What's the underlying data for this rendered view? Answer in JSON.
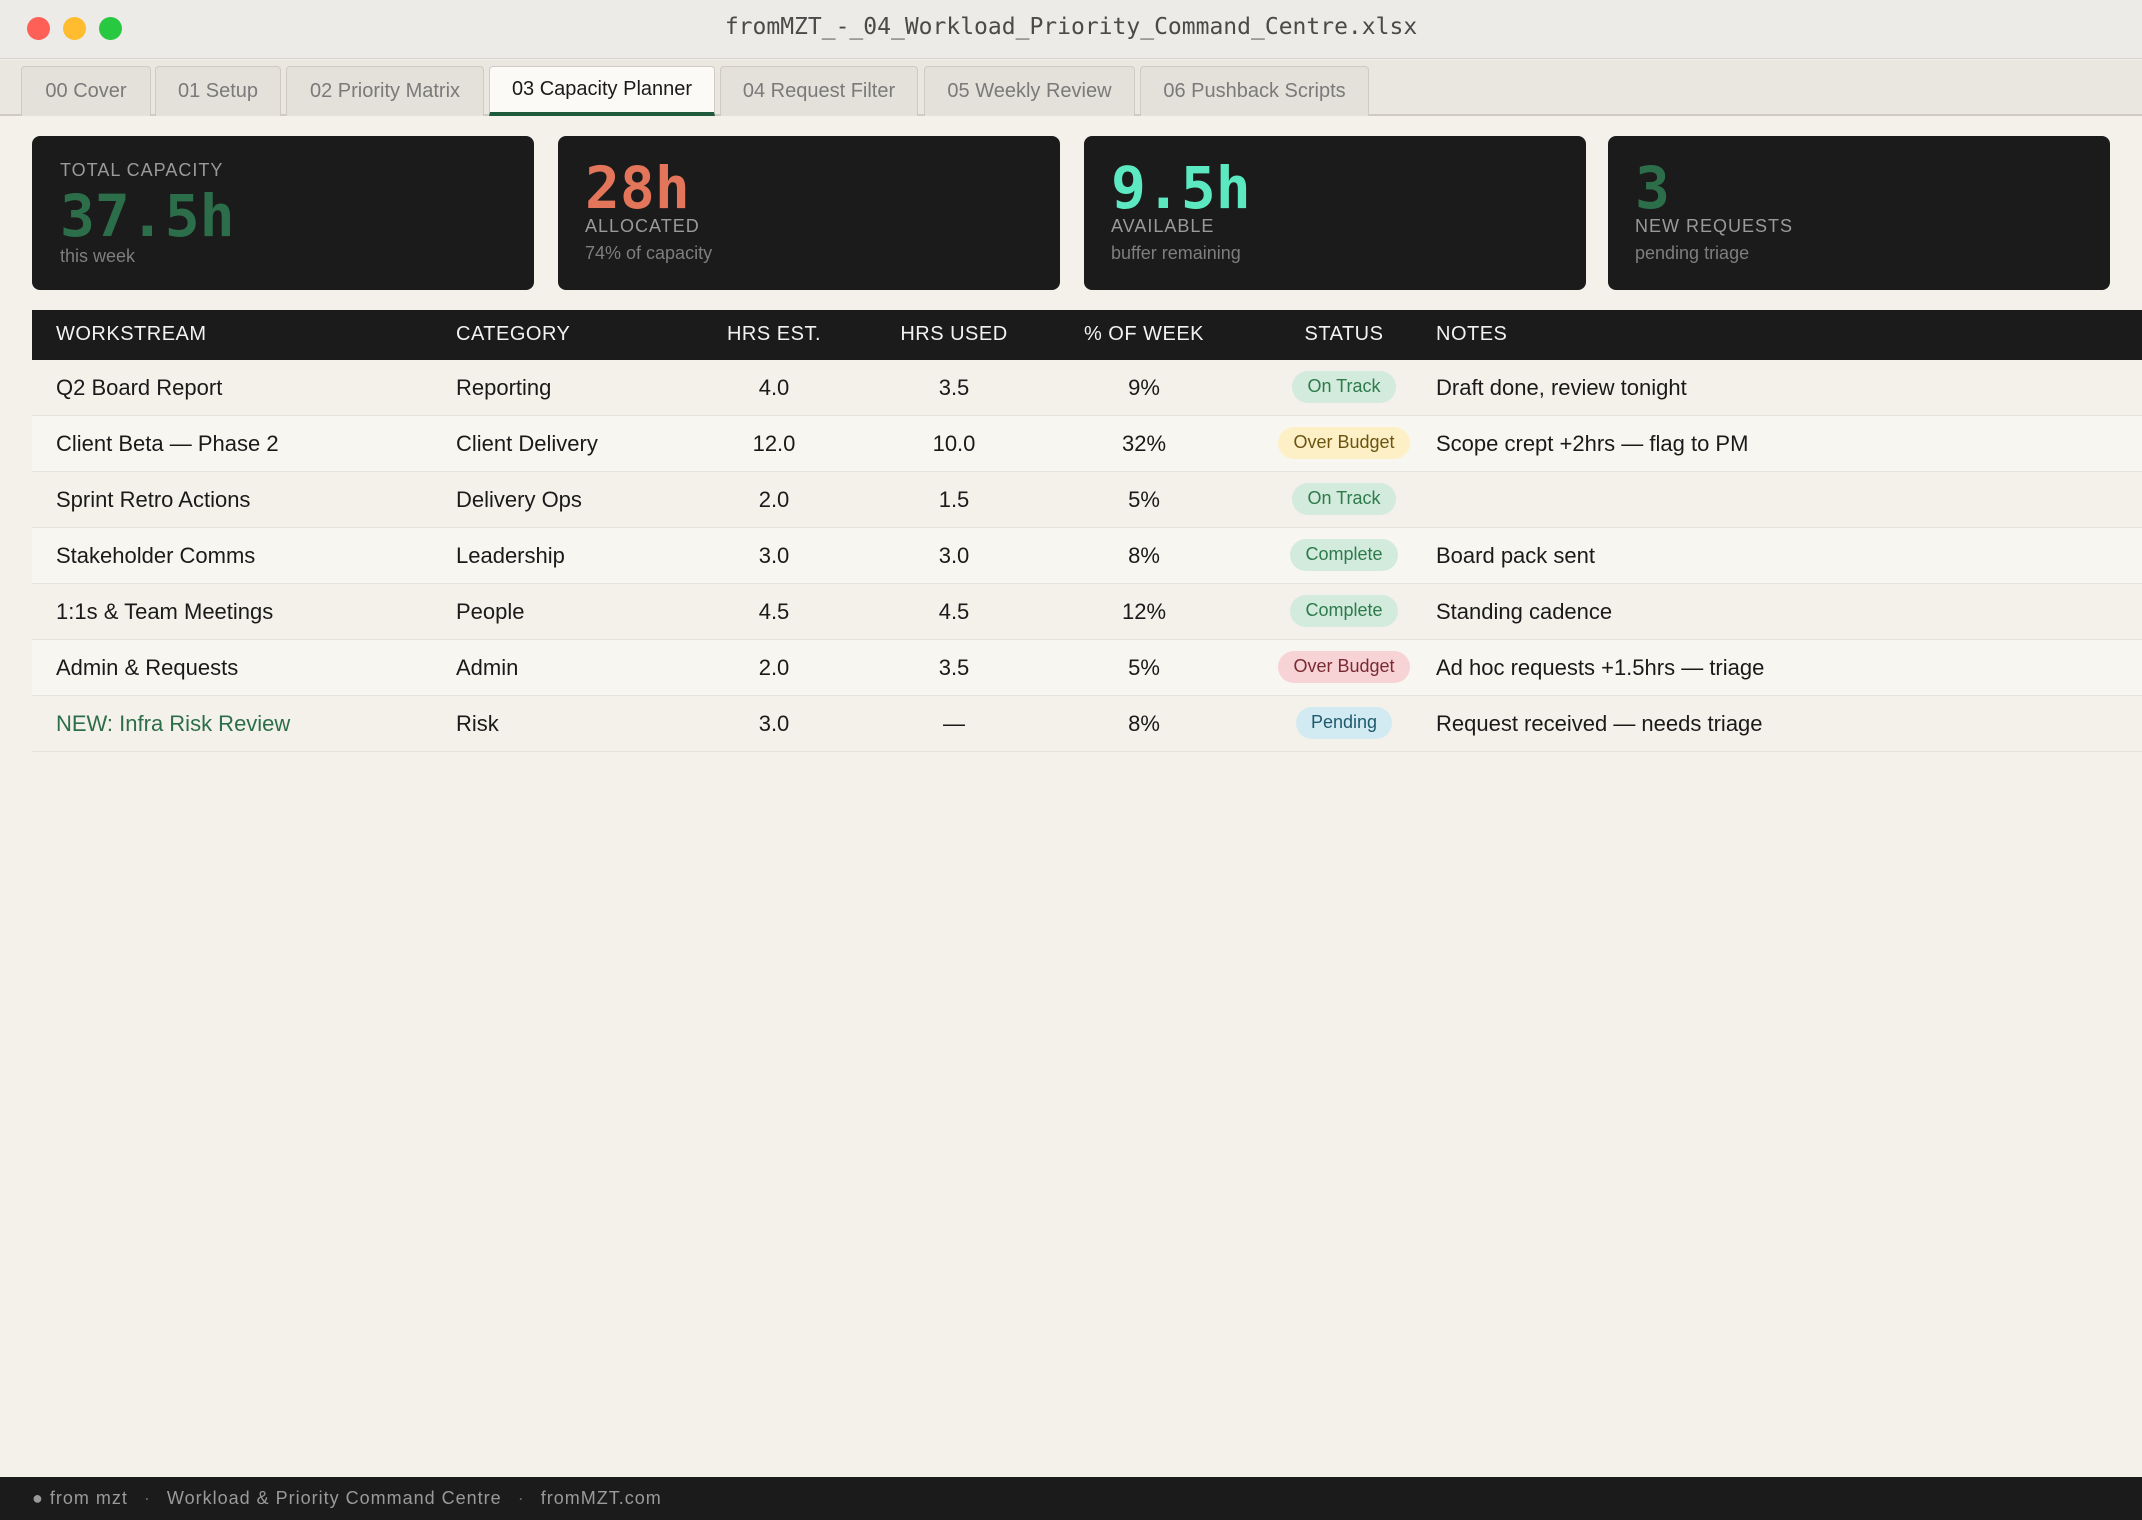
{
  "window": {
    "title": "fromMZT_-_04_Workload_Priority_Command_Centre.xlsx"
  },
  "tabs": [
    {
      "label": "00 Cover",
      "active": false
    },
    {
      "label": "01 Setup",
      "active": false
    },
    {
      "label": "02 Priority Matrix",
      "active": false
    },
    {
      "label": "03 Capacity Planner",
      "active": true
    },
    {
      "label": "04 Request Filter",
      "active": false
    },
    {
      "label": "05 Weekly Review",
      "active": false
    },
    {
      "label": "06 Pushback Scripts",
      "active": false
    }
  ],
  "kpis": [
    {
      "label": "TOTAL CAPACITY",
      "value": "37.5h",
      "sub": "this week",
      "color": "#2d6e4a"
    },
    {
      "label": "ALLOCATED",
      "value": "28h",
      "sub": "74% of capacity",
      "color": "#e2755a"
    },
    {
      "label": "AVAILABLE",
      "value": "9.5h",
      "sub": "buffer remaining",
      "color": "#5ce8c0"
    },
    {
      "label": "NEW REQUESTS",
      "value": "3",
      "sub": "pending triage",
      "color": "#2d6e4a"
    }
  ],
  "table": {
    "headers": {
      "workstream": "WORKSTREAM",
      "category": "CATEGORY",
      "hrs_est": "HRS EST.",
      "hrs_used": "HRS USED",
      "pct_week": "% OF WEEK",
      "status": "STATUS",
      "notes": "NOTES"
    },
    "rows": [
      {
        "workstream": "Q2 Board Report",
        "category": "Reporting",
        "hrs_est": "4.0",
        "hrs_used": "3.5",
        "pct_week": "9%",
        "status": "On Track",
        "notes": "Draft done, review tonight"
      },
      {
        "workstream": "Client Beta — Phase 2",
        "category": "Client Delivery",
        "hrs_est": "12.0",
        "hrs_used": "10.0",
        "pct_week": "32%",
        "status": "Over Budget",
        "notes": "Scope crept +2hrs — flag to PM"
      },
      {
        "workstream": "Sprint Retro Actions",
        "category": "Delivery Ops",
        "hrs_est": "2.0",
        "hrs_used": "1.5",
        "pct_week": "5%",
        "status": "On Track",
        "notes": ""
      },
      {
        "workstream": "Stakeholder Comms",
        "category": "Leadership",
        "hrs_est": "3.0",
        "hrs_used": "3.0",
        "pct_week": "8%",
        "status": "Complete",
        "notes": "Board pack sent"
      },
      {
        "workstream": "1:1s & Team Meetings",
        "category": "People",
        "hrs_est": "4.5",
        "hrs_used": "4.5",
        "pct_week": "12%",
        "status": "Complete",
        "notes": "Standing cadence"
      },
      {
        "workstream": "Admin & Requests",
        "category": "Admin",
        "hrs_est": "2.0",
        "hrs_used": "3.5",
        "pct_week": "5%",
        "status": "Over Budget",
        "notes": "Ad hoc requests +1.5hrs — triage"
      },
      {
        "workstream": "NEW: Infra Risk Review",
        "category": "Risk",
        "hrs_est": "3.0",
        "hrs_used": "—",
        "pct_week": "8%",
        "status": "Pending",
        "notes": "Request received — needs triage"
      }
    ]
  },
  "footer": {
    "brand": "● from mzt",
    "separator": "·",
    "product": "Workload & Priority Command Centre",
    "site": "fromMZT.com"
  }
}
